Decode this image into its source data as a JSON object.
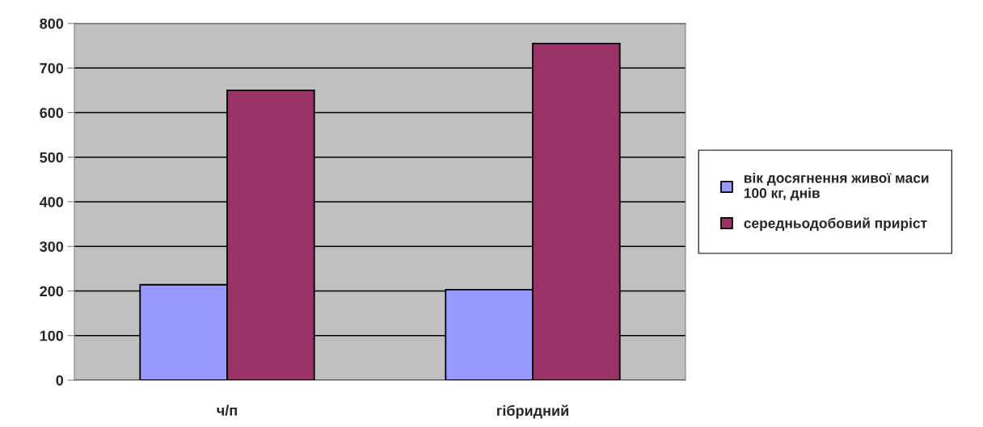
{
  "chart_data": {
    "type": "bar",
    "categories": [
      "ч/п",
      "гібридний"
    ],
    "series": [
      {
        "name": "вік досягнення живої маси 100 кг, днів",
        "color": "#9999ff",
        "values": [
          214,
          203
        ]
      },
      {
        "name": "середньодобовий приріст",
        "color": "#993366",
        "values": [
          650,
          755
        ]
      }
    ],
    "ylim": [
      0,
      800
    ],
    "yticks": [
      0,
      100,
      200,
      300,
      400,
      500,
      600,
      700,
      800
    ],
    "grid": "y",
    "legend": "right"
  }
}
